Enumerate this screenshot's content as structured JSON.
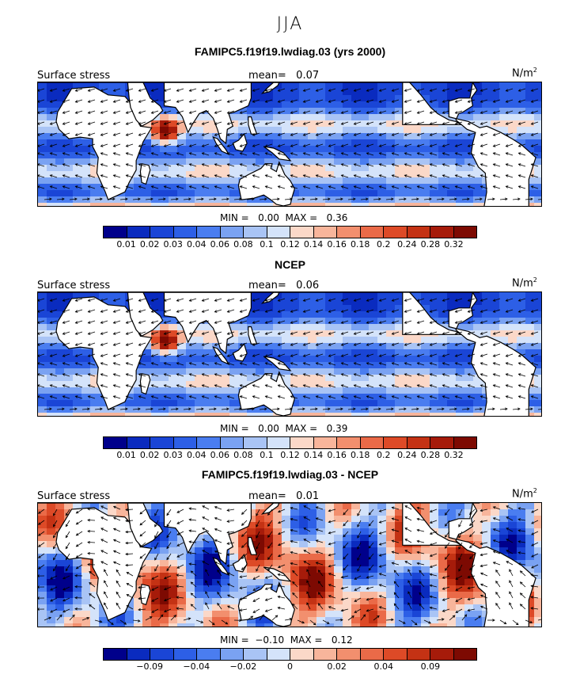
{
  "season": "JJA",
  "units_suffix": "2",
  "panels": [
    {
      "title": "FAMIPC5.f19f19.lwdiag.03 (yrs 2000)",
      "variable": "Surface stress",
      "mean_label": "mean=",
      "mean_value": "0.07",
      "units": "N/m",
      "min_max": "MIN =   0.00  MAX =   0.36",
      "colorbar_labels": [
        "0.01",
        "0.02",
        "0.03",
        "0.04",
        "0.06",
        "0.08",
        "0.1",
        "0.12",
        "0.14",
        "0.16",
        "0.18",
        "0.2",
        "0.24",
        "0.28",
        "0.32"
      ],
      "colors": [
        "#00008b",
        "#0a2bbf",
        "#1a45d6",
        "#2d5fe6",
        "#4a7df0",
        "#7aa2f2",
        "#a9c4f5",
        "#d4e3fa",
        "#fbd8c8",
        "#f8b59b",
        "#f28f6e",
        "#ea6a48",
        "#dd4a27",
        "#c43214",
        "#a61b0a",
        "#7d0a02"
      ],
      "field": "absolute"
    },
    {
      "title": "NCEP",
      "variable": "Surface stress",
      "mean_label": "mean=",
      "mean_value": "0.06",
      "units": "N/m",
      "min_max": "MIN =   0.00  MAX =   0.39",
      "colorbar_labels": [
        "0.01",
        "0.02",
        "0.03",
        "0.04",
        "0.06",
        "0.08",
        "0.1",
        "0.12",
        "0.14",
        "0.16",
        "0.18",
        "0.2",
        "0.24",
        "0.28",
        "0.32"
      ],
      "colors": [
        "#00008b",
        "#0a2bbf",
        "#1a45d6",
        "#2d5fe6",
        "#4a7df0",
        "#7aa2f2",
        "#a9c4f5",
        "#d4e3fa",
        "#fbd8c8",
        "#f8b59b",
        "#f28f6e",
        "#ea6a48",
        "#dd4a27",
        "#c43214",
        "#a61b0a",
        "#7d0a02"
      ],
      "field": "absolute"
    },
    {
      "title": "FAMIPC5.f19f19.lwdiag.03 - NCEP",
      "variable": "Surface stress",
      "mean_label": "mean=",
      "mean_value": "0.01",
      "units": "N/m",
      "min_max": "MIN =  −0.10  MAX =   0.12",
      "colorbar_labels": [
        "−0.09",
        "−0.04",
        "−0.02",
        "0",
        "0.02",
        "0.04",
        "0.09"
      ],
      "colors": [
        "#00008b",
        "#0a2bbf",
        "#1a45d6",
        "#2d5fe6",
        "#4a7df0",
        "#7aa2f2",
        "#a9c4f5",
        "#d4e3fa",
        "#fbd8c8",
        "#f8b59b",
        "#f28f6e",
        "#ea6a48",
        "#dd4a27",
        "#c43214",
        "#a61b0a",
        "#7d0a02"
      ],
      "field": "difference"
    }
  ]
}
